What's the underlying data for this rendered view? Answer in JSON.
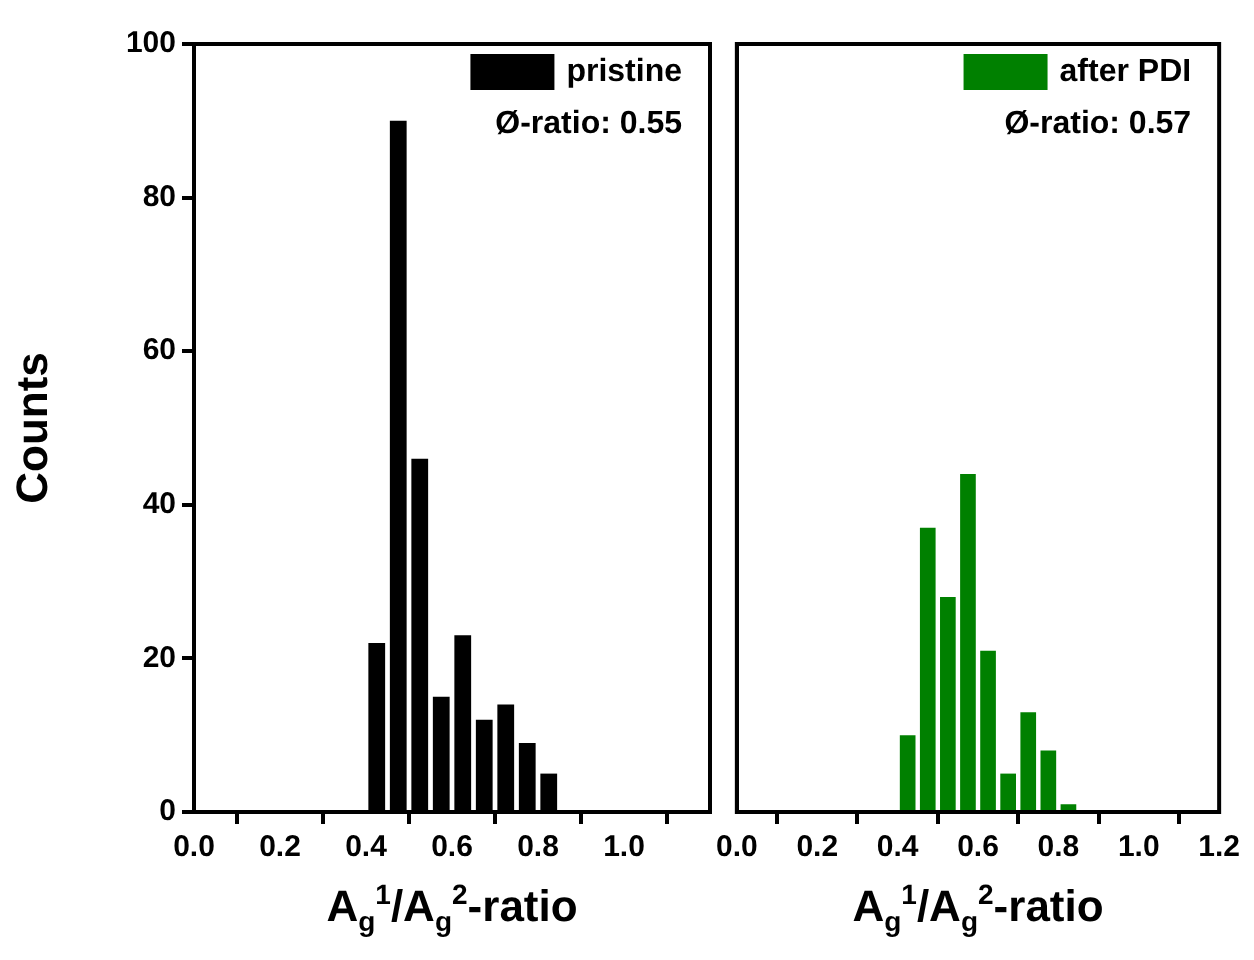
{
  "chart_data": [
    {
      "type": "histogram",
      "xlabel": "A$_{g}$$^{1}$/A$_{g}$$^{2}$-ratio",
      "ylabel": "Counts",
      "bins": [
        0.4,
        0.45,
        0.5,
        0.55,
        0.6,
        0.65,
        0.7,
        0.75,
        0.8,
        0.85
      ],
      "series": [
        {
          "name": "pristine",
          "color": "#000000",
          "values": [
            22,
            90,
            46,
            15,
            23,
            12,
            14,
            9,
            5
          ]
        }
      ],
      "xlim": [
        0,
        1.2
      ],
      "xticks": [
        {
          "value": 0,
          "label": "0.0"
        },
        {
          "value": 0.2,
          "label": "0.2"
        },
        {
          "value": 0.4,
          "label": "0.4"
        },
        {
          "value": 0.6,
          "label": "0.6"
        },
        {
          "value": 0.8,
          "label": "0.8"
        },
        {
          "value": 1,
          "label": "1.0"
        }
      ],
      "ylim": [
        0,
        100
      ],
      "yticks": [
        0,
        20,
        40,
        60,
        80,
        100
      ],
      "legend": "top right",
      "annotations": [
        "Ø-ratio: 0.55"
      ],
      "grid": false
    },
    {
      "type": "histogram",
      "xlabel": "A$_{g}$$^{1}$/A$_{g}$$^{2}$-ratio",
      "bins": [
        0.4,
        0.45,
        0.5,
        0.55,
        0.6,
        0.65,
        0.7,
        0.75,
        0.8,
        0.85
      ],
      "series": [
        {
          "name": "after PDI",
          "color": "#008000",
          "values": [
            10,
            37,
            28,
            44,
            21,
            5,
            13,
            8,
            1
          ]
        }
      ],
      "xlim": [
        0,
        1.2
      ],
      "xticks": [
        {
          "value": 0,
          "label": "0.0"
        },
        {
          "value": 0.2,
          "label": "0.2"
        },
        {
          "value": 0.4,
          "label": "0.4"
        },
        {
          "value": 0.6,
          "label": "0.6"
        },
        {
          "value": 0.8,
          "label": "0.8"
        },
        {
          "value": 1,
          "label": "1.0"
        },
        {
          "value": 1.2,
          "label": "1.2"
        }
      ],
      "ylim": [
        0,
        100
      ],
      "tick_labels": "x",
      "legend": "top right",
      "annotations": [
        "Ø-ratio: 0.57"
      ],
      "grid": false
    }
  ]
}
